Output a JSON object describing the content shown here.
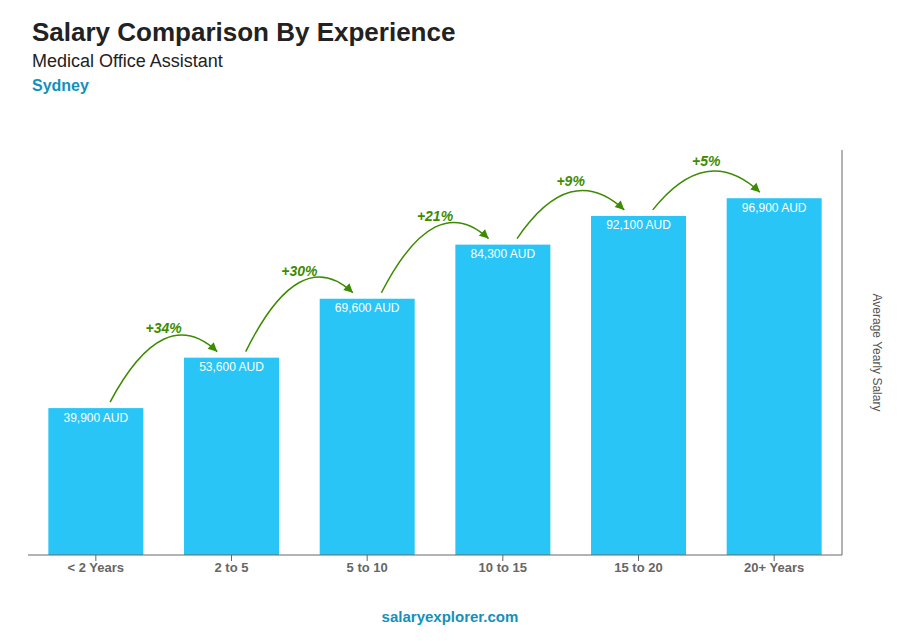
{
  "chart_data": {
    "type": "bar",
    "title": "Salary Comparison By Experience",
    "subtitle": "Medical Office Assistant",
    "city": "Sydney",
    "footer": "salaryexplorer.com",
    "ylabel": "Average Yearly Salary",
    "categories": [
      "< 2 Years",
      "2 to 5",
      "5 to 10",
      "10 to 15",
      "15 to 20",
      "20+ Years"
    ],
    "values": [
      39900,
      53600,
      69600,
      84300,
      92100,
      96900
    ],
    "value_labels": [
      "39,900 AUD",
      "53,600 AUD",
      "69,600 AUD",
      "84,300 AUD",
      "92,100 AUD",
      "96,900 AUD"
    ],
    "annotations": [
      null,
      "+34%",
      "+30%",
      "+21%",
      "+9%",
      "+5%"
    ],
    "color": "#29C5F6",
    "ylim": [
      0,
      110000
    ],
    "grid": false,
    "data_labels": true,
    "tick_labels": "x"
  }
}
